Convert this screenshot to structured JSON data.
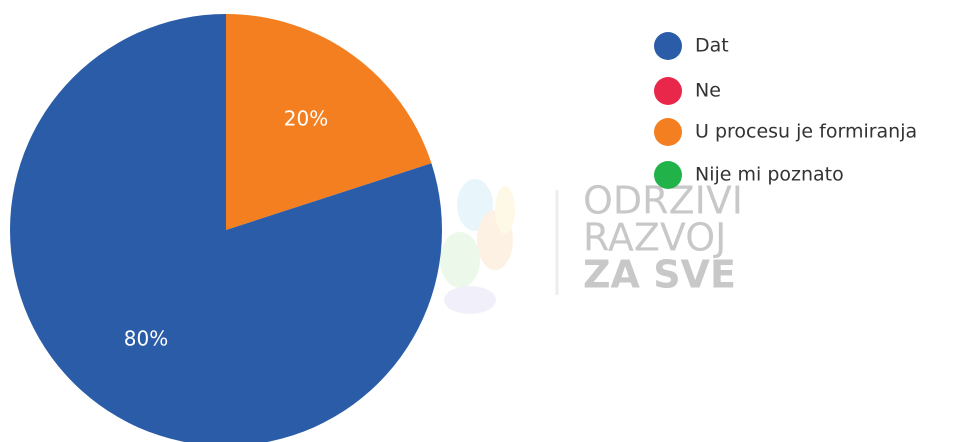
{
  "chart_data": {
    "type": "pie",
    "categories": [
      "Dat",
      "Ne",
      "U procesu je formiranja",
      "Nije mi poznato"
    ],
    "values": [
      80,
      0,
      20,
      0
    ],
    "value_labels": [
      "80%",
      null,
      "20%",
      null
    ],
    "colors": [
      "#2b5ca8",
      "#e8274a",
      "#f47f20",
      "#21b34a"
    ],
    "watermark": [
      "ODRZIVI",
      "RAZVOJ",
      "ZA SVE"
    ]
  }
}
